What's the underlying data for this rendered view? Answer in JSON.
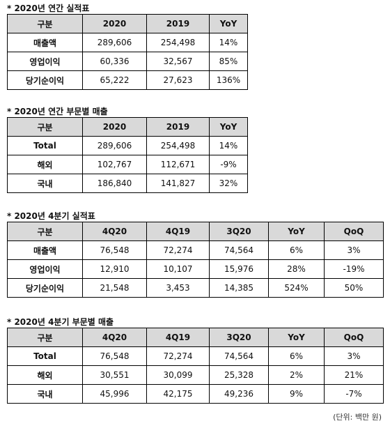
{
  "sections": [
    {
      "title": "* 2020년 연간 실적표",
      "table": {
        "header": [
          "구분",
          "2020",
          "2019",
          "YoY"
        ],
        "rows": [
          [
            "매출액",
            "289,606",
            "254,498",
            "14%"
          ],
          [
            "영업이익",
            "60,336",
            "32,567",
            "85%"
          ],
          [
            "당기순이익",
            "65,222",
            "27,623",
            "136%"
          ]
        ]
      }
    },
    {
      "title": "* 2020년 연간 부문별 매출",
      "table": {
        "header": [
          "구분",
          "2020",
          "2019",
          "YoY"
        ],
        "rows": [
          [
            "Total",
            "289,606",
            "254,498",
            "14%"
          ],
          [
            "해외",
            "102,767",
            "112,671",
            "-9%"
          ],
          [
            "국내",
            "186,840",
            "141,827",
            "32%"
          ]
        ]
      }
    },
    {
      "title": "*  2020년 4분기 실적표",
      "table": {
        "header": [
          "구분",
          "4Q20",
          "4Q19",
          "3Q20",
          "YoY",
          "QoQ"
        ],
        "rows": [
          [
            "매출액",
            "76,548",
            "72,274",
            "74,564",
            "6%",
            "3%"
          ],
          [
            "영업이익",
            "12,910",
            "10,107",
            "15,976",
            "28%",
            "-19%"
          ],
          [
            "당기순이익",
            "21,548",
            "3,453",
            "14,385",
            "524%",
            "50%"
          ]
        ]
      }
    },
    {
      "title": "* 2020년 4분기 부문별 매출",
      "table": {
        "header": [
          "구분",
          "4Q20",
          "4Q19",
          "3Q20",
          "YoY",
          "QoQ"
        ],
        "rows": [
          [
            "Total",
            "76,548",
            "72,274",
            "74,564",
            "6%",
            "3%"
          ],
          [
            "해외",
            "30,551",
            "30,099",
            "25,328",
            "2%",
            "21%"
          ],
          [
            "국내",
            "45,996",
            "42,175",
            "49,236",
            "9%",
            "-7%"
          ]
        ]
      }
    }
  ],
  "note": "(단위: 백만 원)"
}
